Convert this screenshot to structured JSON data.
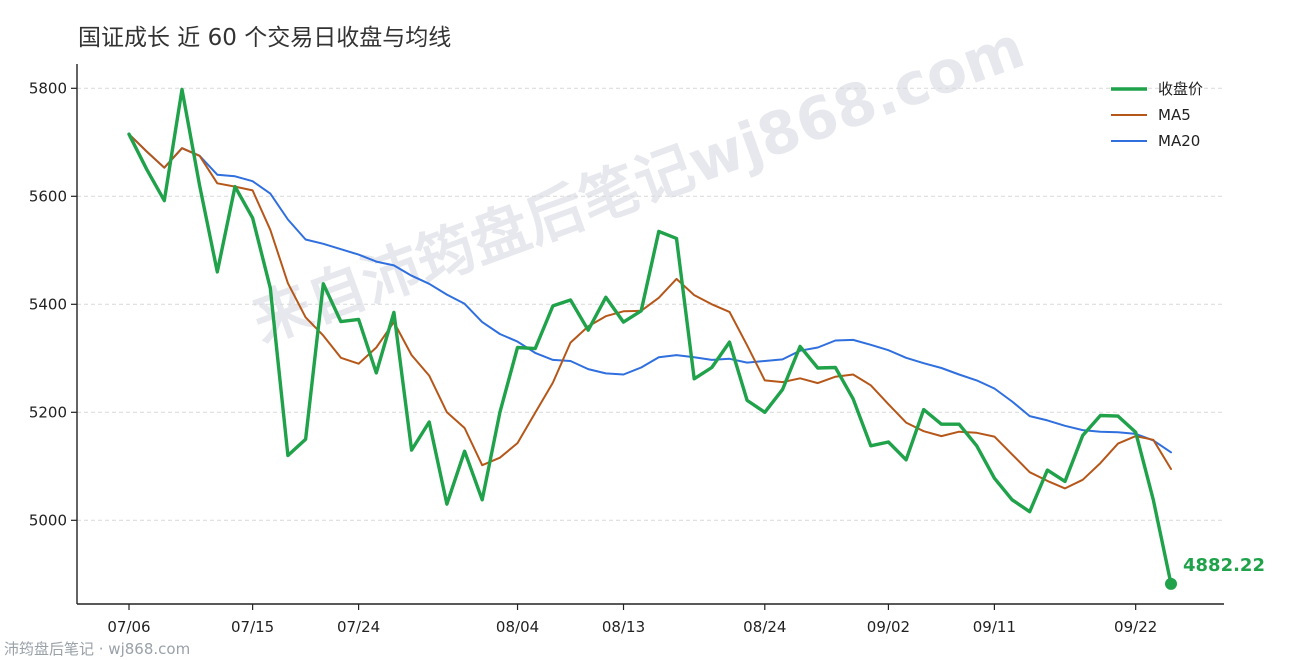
{
  "title": "国证成长 近 60 个交易日收盘与均线",
  "watermarks": {
    "center": "来自沛筠盘后笔记wj868.com",
    "corner": "沛筠盘后笔记 · wj868.com"
  },
  "colors": {
    "close": "#1fa24a",
    "ma5": "#b6571a",
    "ma20": "#2f6fde",
    "axis": "#222222",
    "grid": "#d9d9d9",
    "watermark": "#e6e8ee"
  },
  "chart_data": {
    "type": "line",
    "title": "国证成长 近 60 个交易日收盘与均线",
    "xlabel": "",
    "ylabel": "",
    "ylim": [
      4845,
      5845
    ],
    "grid": "horizontal dashed",
    "legend_position": "top-right",
    "x": [
      "07/06",
      "07/07",
      "07/10",
      "07/11",
      "07/12",
      "07/13",
      "07/14",
      "07/15",
      "07/18",
      "07/19",
      "07/20",
      "07/21",
      "07/22",
      "07/24",
      "07/25",
      "07/26",
      "07/27",
      "07/28",
      "07/31",
      "08/01",
      "08/02",
      "08/03",
      "08/04",
      "08/07",
      "08/08",
      "08/09",
      "08/10",
      "08/11",
      "08/13",
      "08/14",
      "08/15",
      "08/16",
      "08/17",
      "08/18",
      "08/21",
      "08/22",
      "08/24",
      "08/25",
      "08/28",
      "08/29",
      "08/30",
      "08/31",
      "09/01",
      "09/02",
      "09/04",
      "09/05",
      "09/06",
      "09/07",
      "09/08",
      "09/11",
      "09/12",
      "09/13",
      "09/14",
      "09/15",
      "09/18",
      "09/19",
      "09/20",
      "09/22",
      "09/25",
      "09/26"
    ],
    "x_ticks": [
      "07/06",
      "07/15",
      "07/24",
      "08/04",
      "08/13",
      "08/24",
      "09/02",
      "09/11",
      "09/22"
    ],
    "y_ticks": [
      5000,
      5200,
      5400,
      5600,
      5800
    ],
    "series": [
      {
        "name": "收盘价",
        "values": [
          5715,
          5650,
          5592,
          5798,
          5620,
          5460,
          5618,
          5560,
          5430,
          5120,
          5150,
          5438,
          5368,
          5372,
          5273,
          5385,
          5130,
          5182,
          5030,
          5128,
          5038,
          5200,
          5320,
          5318,
          5397,
          5408,
          5352,
          5413,
          5367,
          5388,
          5535,
          5522,
          5262,
          5283,
          5330,
          5222,
          5200,
          5242,
          5322,
          5282,
          5283,
          5225,
          5138,
          5145,
          5112,
          5205,
          5178,
          5178,
          5138,
          5078,
          5038,
          5016,
          5093,
          5072,
          5157,
          5194,
          5193,
          5163,
          5038,
          4882.22
        ]
      },
      {
        "name": "MA5",
        "values": [
          5715,
          5683,
          5653,
          5689,
          5675,
          5624,
          5618,
          5611,
          5538,
          5439,
          5376,
          5342,
          5301,
          5290,
          5320,
          5367,
          5306,
          5268,
          5200,
          5171,
          5102,
          5116,
          5143,
          5199,
          5255,
          5329,
          5359,
          5378,
          5387,
          5388,
          5412,
          5447,
          5417,
          5400,
          5386,
          5324,
          5259,
          5256,
          5263,
          5254,
          5266,
          5270,
          5250,
          5215,
          5181,
          5165,
          5156,
          5164,
          5162,
          5155,
          5122,
          5089,
          5073,
          5059,
          5075,
          5106,
          5142,
          5156,
          5149,
          5095
        ]
      },
      {
        "name": "MA20",
        "values": [
          5715,
          5683,
          5653,
          5689,
          5675,
          5640,
          5637,
          5628,
          5605,
          5557,
          5520,
          5512,
          5502,
          5492,
          5479,
          5472,
          5453,
          5438,
          5418,
          5401,
          5367,
          5345,
          5331,
          5310,
          5297,
          5295,
          5280,
          5272,
          5270,
          5283,
          5302,
          5306,
          5302,
          5297,
          5299,
          5292,
          5295,
          5298,
          5314,
          5320,
          5333,
          5334,
          5325,
          5315,
          5301,
          5291,
          5282,
          5270,
          5259,
          5244,
          5220,
          5193,
          5185,
          5175,
          5167,
          5164,
          5163,
          5160,
          5148,
          5126
        ]
      }
    ],
    "annotations": [
      {
        "series": "收盘价",
        "x": "09/26",
        "y": 4882.22,
        "label": "4882.22"
      }
    ]
  }
}
